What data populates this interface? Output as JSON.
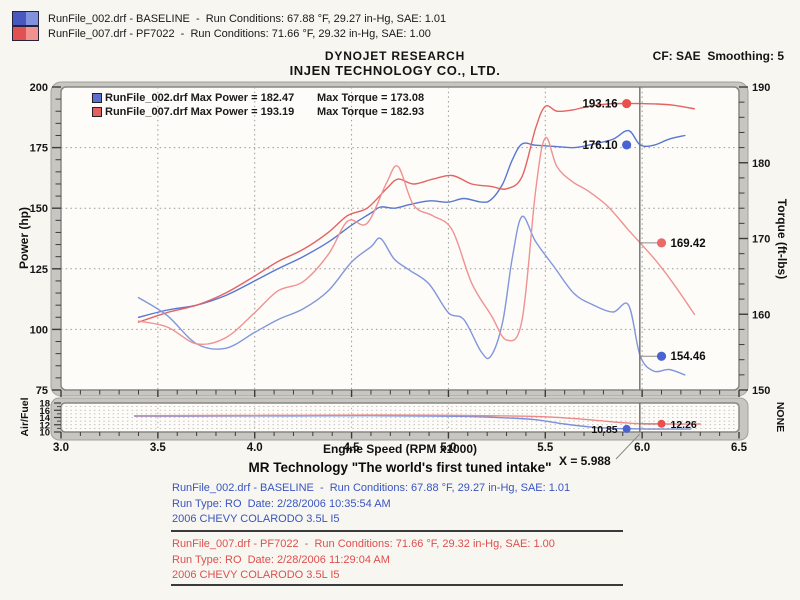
{
  "page_bg": "#f7f6f1",
  "top_legend": {
    "rows": [
      {
        "text": "RunFile_002.drf - BASELINE  -  Run Conditions: 67.88 °F, 29.27 in-Hg, SAE: 1.01",
        "swatch_dark": "#4858bf",
        "swatch_light": "#8392de"
      },
      {
        "text": "RunFile_007.drf - PF7022  -  Run Conditions: 71.66 °F, 29.32 in-Hg, SAE: 1.00",
        "swatch_dark": "#e25151",
        "swatch_light": "#f2928f"
      }
    ]
  },
  "header": {
    "title1": "DYNOJET RESEARCH",
    "title2": "INJEN TECHNOLOGY CO., LTD.",
    "cf": "CF: SAE  Smoothing: 5"
  },
  "chart_data": {
    "type": "line",
    "xlabel": "Engine Speed (RPM x1000)",
    "x_range": [
      3.0,
      6.5
    ],
    "x_major_step": 0.5,
    "x_minor_step": 0.1,
    "cursor": {
      "x": 5.988,
      "label": "X = 5.988"
    },
    "axes": {
      "power": {
        "label": "Power (hp)",
        "range": [
          75,
          200
        ],
        "major_ticks": [
          75,
          100,
          125,
          150,
          175,
          200
        ],
        "minor_step": 5,
        "gridlines": [
          100,
          125,
          150,
          175
        ]
      },
      "torque": {
        "label": "Torque (ft-lbs)",
        "range": [
          150,
          190
        ],
        "major_ticks": [
          150,
          160,
          170,
          180,
          190
        ],
        "minor_step": 2
      },
      "af": {
        "label": "Air/Fuel",
        "range": [
          10,
          18
        ],
        "major_ticks": [
          10,
          12,
          14,
          16,
          18
        ],
        "minor_step": 1,
        "right_label": "NONE",
        "gridlines": [
          11,
          12,
          13,
          14,
          15,
          16,
          17
        ]
      }
    },
    "legend": [
      {
        "swatch": "#5a6fd0",
        "left_text": "RunFile_002.drf Max Power = 182.47",
        "right_text": "Max Torque = 173.08"
      },
      {
        "swatch": "#e66060",
        "left_text": "RunFile_007.drf Max Power = 193.19",
        "right_text": "Max Torque = 182.93"
      }
    ],
    "series": [
      {
        "id": "power-baseline",
        "run": "RunFile_002.drf",
        "axis": "power",
        "color": "#5877d2",
        "points": [
          [
            3.4,
            105
          ],
          [
            3.55,
            108
          ],
          [
            3.7,
            110
          ],
          [
            3.85,
            114
          ],
          [
            4.0,
            120
          ],
          [
            4.12,
            125
          ],
          [
            4.25,
            130
          ],
          [
            4.38,
            136
          ],
          [
            4.5,
            143
          ],
          [
            4.6,
            148
          ],
          [
            4.65,
            150.5
          ],
          [
            4.72,
            150
          ],
          [
            4.8,
            151.5
          ],
          [
            4.9,
            153
          ],
          [
            5.0,
            152.5
          ],
          [
            5.08,
            154
          ],
          [
            5.17,
            152.5
          ],
          [
            5.22,
            153.5
          ],
          [
            5.28,
            160
          ],
          [
            5.33,
            170
          ],
          [
            5.38,
            176.5
          ],
          [
            5.45,
            176
          ],
          [
            5.55,
            175.5
          ],
          [
            5.65,
            175
          ],
          [
            5.75,
            176.5
          ],
          [
            5.85,
            178.5
          ],
          [
            5.93,
            182
          ],
          [
            5.99,
            176.1
          ],
          [
            6.06,
            176
          ],
          [
            6.14,
            178.5
          ],
          [
            6.22,
            180
          ]
        ],
        "marker": {
          "rpm": 5.92,
          "value": 176.1,
          "label": "176.10",
          "side": "left",
          "dot_color": "#4a63d2",
          "connector": false
        }
      },
      {
        "id": "power-pf7022",
        "run": "RunFile_007.drf",
        "axis": "power",
        "color": "#e26464",
        "points": [
          [
            3.4,
            103
          ],
          [
            3.55,
            107
          ],
          [
            3.7,
            110
          ],
          [
            3.85,
            115
          ],
          [
            4.0,
            122
          ],
          [
            4.12,
            128
          ],
          [
            4.25,
            133
          ],
          [
            4.38,
            140
          ],
          [
            4.48,
            147
          ],
          [
            4.58,
            150
          ],
          [
            4.68,
            158
          ],
          [
            4.74,
            162
          ],
          [
            4.82,
            160
          ],
          [
            4.92,
            162
          ],
          [
            5.02,
            163.5
          ],
          [
            5.12,
            160
          ],
          [
            5.22,
            159
          ],
          [
            5.3,
            158
          ],
          [
            5.38,
            163
          ],
          [
            5.45,
            183
          ],
          [
            5.5,
            192
          ],
          [
            5.56,
            190
          ],
          [
            5.64,
            190.5
          ],
          [
            5.72,
            192
          ],
          [
            5.82,
            193
          ],
          [
            5.92,
            193.2
          ],
          [
            5.99,
            193.16
          ],
          [
            6.08,
            193
          ],
          [
            6.16,
            192.5
          ],
          [
            6.27,
            191
          ]
        ],
        "marker": {
          "rpm": 5.92,
          "value": 193.16,
          "label": "193.16",
          "side": "left",
          "dot_color": "#ea4f4f",
          "connector": false
        }
      },
      {
        "id": "torque-baseline",
        "run": "RunFile_002.drf",
        "axis": "torque",
        "color": "#8296dc",
        "points": [
          [
            3.4,
            162.2
          ],
          [
            3.55,
            159.8
          ],
          [
            3.7,
            156.1
          ],
          [
            3.85,
            155.5
          ],
          [
            4.0,
            157.6
          ],
          [
            4.12,
            159.3
          ],
          [
            4.25,
            160.7
          ],
          [
            4.38,
            163.1
          ],
          [
            4.5,
            166.9
          ],
          [
            4.6,
            168.9
          ],
          [
            4.65,
            170.0
          ],
          [
            4.72,
            167.3
          ],
          [
            4.8,
            165.8
          ],
          [
            4.9,
            164.0
          ],
          [
            5.0,
            160.2
          ],
          [
            5.08,
            159.3
          ],
          [
            5.17,
            155.0
          ],
          [
            5.22,
            154.5
          ],
          [
            5.28,
            159.0
          ],
          [
            5.33,
            167.5
          ],
          [
            5.38,
            172.9
          ],
          [
            5.45,
            169.6
          ],
          [
            5.55,
            166.1
          ],
          [
            5.65,
            162.7
          ],
          [
            5.75,
            161.2
          ],
          [
            5.85,
            160.3
          ],
          [
            5.93,
            161.2
          ],
          [
            5.99,
            154.5
          ],
          [
            6.06,
            152.5
          ],
          [
            6.14,
            152.7
          ],
          [
            6.22,
            152.0
          ]
        ],
        "marker": {
          "rpm": 6.1,
          "value": 154.46,
          "label": "154.46",
          "side": "right",
          "dot_color": "#4a63d2",
          "connector": true
        }
      },
      {
        "id": "torque-pf7022",
        "run": "RunFile_007.drf",
        "axis": "torque",
        "color": "#ef9292",
        "points": [
          [
            3.4,
            159.1
          ],
          [
            3.55,
            158.3
          ],
          [
            3.7,
            156.1
          ],
          [
            3.85,
            156.9
          ],
          [
            4.0,
            160.2
          ],
          [
            4.12,
            163.1
          ],
          [
            4.25,
            164.3
          ],
          [
            4.38,
            167.9
          ],
          [
            4.48,
            172.3
          ],
          [
            4.58,
            172.0
          ],
          [
            4.68,
            177.3
          ],
          [
            4.74,
            179.5
          ],
          [
            4.82,
            174.4
          ],
          [
            4.92,
            173.0
          ],
          [
            5.02,
            171.1
          ],
          [
            5.12,
            164.1
          ],
          [
            5.22,
            159.9
          ],
          [
            5.3,
            156.6
          ],
          [
            5.38,
            159.2
          ],
          [
            5.45,
            176.3
          ],
          [
            5.5,
            183.3
          ],
          [
            5.56,
            179.5
          ],
          [
            5.64,
            177.5
          ],
          [
            5.72,
            176.3
          ],
          [
            5.82,
            174.3
          ],
          [
            5.92,
            171.4
          ],
          [
            5.99,
            169.42
          ],
          [
            6.08,
            166.8
          ],
          [
            6.16,
            164.1
          ],
          [
            6.27,
            160.0
          ]
        ],
        "marker": {
          "rpm": 6.1,
          "value": 169.42,
          "label": "169.42",
          "side": "right",
          "dot_color": "#ea6a6a",
          "connector": true
        }
      },
      {
        "id": "af-baseline",
        "run": "RunFile_002.drf",
        "axis": "af",
        "color": "#7b90da",
        "points": [
          [
            3.38,
            14.35
          ],
          [
            3.8,
            14.4
          ],
          [
            4.2,
            14.45
          ],
          [
            4.6,
            14.5
          ],
          [
            4.9,
            14.4
          ],
          [
            5.1,
            14.3
          ],
          [
            5.3,
            13.9
          ],
          [
            5.45,
            13.4
          ],
          [
            5.6,
            12.2
          ],
          [
            5.75,
            11.3
          ],
          [
            5.88,
            10.95
          ],
          [
            5.99,
            10.85
          ],
          [
            6.1,
            10.8
          ],
          [
            6.25,
            10.8
          ]
        ],
        "marker": {
          "rpm": 5.92,
          "value": 10.85,
          "label": "10.85",
          "side": "left",
          "dot_color": "#4a63d2",
          "connector": false
        }
      },
      {
        "id": "af-pf7022",
        "run": "RunFile_007.drf",
        "axis": "af",
        "color": "#ec8888",
        "points": [
          [
            3.38,
            14.5
          ],
          [
            3.8,
            14.55
          ],
          [
            4.2,
            14.6
          ],
          [
            4.6,
            14.65
          ],
          [
            5.0,
            14.6
          ],
          [
            5.3,
            14.45
          ],
          [
            5.5,
            14.2
          ],
          [
            5.7,
            13.5
          ],
          [
            5.85,
            12.8
          ],
          [
            5.99,
            12.26
          ],
          [
            6.12,
            12.2
          ],
          [
            6.3,
            12.2
          ]
        ],
        "marker": {
          "rpm": 6.1,
          "value": 12.26,
          "label": "12.26",
          "side": "right",
          "dot_color": "#ea4f4f",
          "connector": true
        }
      }
    ]
  },
  "footer": {
    "tagline": "MR Technology \"The world's first tuned intake\"",
    "blue_block": [
      "RunFile_002.drf - BASELINE  -  Run Conditions: 67.88 °F, 29.27 in-Hg, SAE: 1.01",
      "Run Type: RO  Date: 2/28/2006 10:35:54 AM",
      "2006 CHEVY COLARODO 3.5L I5"
    ],
    "red_block": [
      "RunFile_007.drf - PF7022  -  Run Conditions: 71.66 °F, 29.32 in-Hg, SAE: 1.00",
      "Run Type: RO  Date: 2/28/2006 11:29:04 AM",
      "2006 CHEVY COLARODO 3.5L I5"
    ]
  }
}
